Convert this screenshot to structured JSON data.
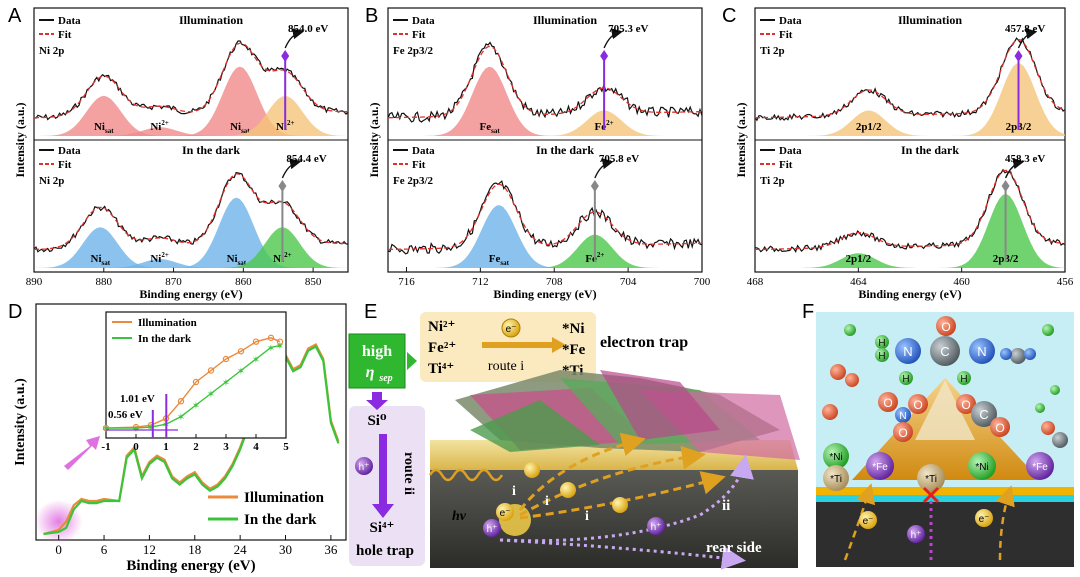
{
  "colors": {
    "fit_red": "#e0312c",
    "peak_red": "#f08a8a",
    "peak_orange": "#f5c47a",
    "peak_blue": "#6fb4ea",
    "peak_green": "#4cc84c",
    "illum_orange": "#e98a3e",
    "dark_green": "#3ac43a",
    "purple": "#8a2be2",
    "e_panel_bg": "#fdf0c8",
    "f_panel_bg": "#c8eef5"
  },
  "chart_data": [
    {
      "panel": "A",
      "type": "line",
      "title_top": "Illumination",
      "title_bottom": "In the dark",
      "xlabel": "Binding energy (eV)",
      "ylabel": "Intensity (a.u.)",
      "xlim": [
        890,
        845
      ],
      "xticks": [
        "890",
        "880",
        "870",
        "860",
        "850"
      ],
      "legend": [
        "Data",
        "Fit"
      ],
      "element_label": "Ni 2p",
      "top_series": {
        "peaks": [
          {
            "name": "Ni",
            "sub": "sat",
            "center": 880.0,
            "height": 0.55,
            "color": "peak_red"
          },
          {
            "name": "Ni",
            "sup": "2+",
            "center": 872.0,
            "height": 0.12,
            "color": "peak_red"
          },
          {
            "name": "Ni",
            "sub": "sat",
            "center": 860.5,
            "height": 0.95,
            "color": "peak_red"
          },
          {
            "name": "Ni",
            "sup": "2+",
            "center": 854.0,
            "height": 0.55,
            "color": "peak_orange"
          }
        ],
        "annotation": "854.0 eV"
      },
      "bottom_series": {
        "peaks": [
          {
            "name": "Ni",
            "sub": "sat",
            "center": 880.5,
            "height": 0.55,
            "color": "peak_blue"
          },
          {
            "name": "Ni",
            "sup": "2+",
            "center": 872.0,
            "height": 0.12,
            "color": "peak_blue"
          },
          {
            "name": "Ni",
            "sub": "sat",
            "center": 861.0,
            "height": 0.95,
            "color": "peak_blue"
          },
          {
            "name": "Ni",
            "sup": "2+",
            "center": 854.4,
            "height": 0.55,
            "color": "peak_green"
          }
        ],
        "annotation": "854.4 eV"
      }
    },
    {
      "panel": "B",
      "type": "line",
      "title_top": "Illumination",
      "title_bottom": "In the dark",
      "xlabel": "Binding energy (eV)",
      "ylabel": "Intensity (a.u.)",
      "xlim": [
        717,
        700
      ],
      "xticks": [
        "716",
        "712",
        "708",
        "704",
        "700"
      ],
      "legend": [
        "Data",
        "Fit"
      ],
      "element_label": "Fe 2p3/2",
      "top_series": {
        "peaks": [
          {
            "name": "Fe",
            "sub": "sat",
            "center": 711.5,
            "height": 0.95,
            "color": "peak_red"
          },
          {
            "name": "Fe",
            "sup": "2+",
            "center": 705.3,
            "height": 0.35,
            "color": "peak_orange"
          }
        ],
        "annotation": "705.3 eV"
      },
      "bottom_series": {
        "peaks": [
          {
            "name": "Fe",
            "sub": "sat",
            "center": 711.0,
            "height": 0.85,
            "color": "peak_blue"
          },
          {
            "name": "Fe",
            "sup": "2+",
            "center": 705.8,
            "height": 0.45,
            "color": "peak_green"
          }
        ],
        "annotation": "705.8 eV"
      }
    },
    {
      "panel": "C",
      "type": "line",
      "title_top": "Illumination",
      "title_bottom": "In the dark",
      "xlabel": "Binding energy (eV)",
      "ylabel": "Intensity (a.u.)",
      "xlim": [
        468,
        456
      ],
      "xticks": [
        "468",
        "464",
        "460",
        "456"
      ],
      "legend": [
        "Data",
        "Fit"
      ],
      "element_label": "Ti 2p",
      "top_series": {
        "peaks": [
          {
            "name": "2p1/2",
            "center": 463.6,
            "height": 0.35,
            "color": "peak_orange"
          },
          {
            "name": "2p3/2",
            "center": 457.8,
            "height": 1.0,
            "color": "peak_orange"
          }
        ],
        "annotation": "457.8 eV"
      },
      "bottom_series": {
        "peaks": [
          {
            "name": "2p1/2",
            "center": 464.0,
            "height": 0.2,
            "color": "peak_green"
          },
          {
            "name": "2p3/2",
            "center": 458.3,
            "height": 1.0,
            "color": "peak_green"
          }
        ],
        "annotation": "458.3 eV"
      }
    },
    {
      "panel": "D",
      "type": "line",
      "xlabel": "Binding energy (eV)",
      "ylabel": "Intensity (a.u.)",
      "xlim": [
        -3,
        38
      ],
      "xticks": [
        "0",
        "6",
        "12",
        "18",
        "24",
        "30",
        "36"
      ],
      "legend": [
        "Illumination",
        "In the dark"
      ],
      "series": [
        {
          "name": "Illumination",
          "color": "illum_orange",
          "x": [
            -2,
            0,
            1,
            2,
            3,
            4,
            5,
            6,
            8,
            9,
            10,
            11,
            12,
            13,
            14,
            15,
            16,
            17,
            18,
            19,
            20,
            21,
            22,
            23,
            24,
            25,
            26,
            27,
            28,
            29,
            30,
            31,
            32,
            33,
            34,
            35,
            36,
            37
          ],
          "y": [
            0.0,
            0.02,
            0.06,
            0.14,
            0.17,
            0.16,
            0.16,
            0.17,
            0.16,
            0.38,
            0.42,
            0.28,
            0.35,
            0.38,
            0.36,
            0.28,
            0.25,
            0.28,
            0.3,
            0.25,
            0.22,
            0.24,
            0.28,
            0.34,
            0.42,
            0.52,
            0.6,
            0.72,
            0.85,
            0.9,
            0.87,
            0.8,
            0.82,
            0.9,
            0.92,
            0.85,
            0.55,
            0.45
          ]
        },
        {
          "name": "In the dark",
          "color": "dark_green",
          "x": [
            -2,
            0,
            1,
            2,
            3,
            4,
            5,
            6,
            8,
            9,
            10,
            11,
            12,
            13,
            14,
            15,
            16,
            17,
            18,
            19,
            20,
            21,
            22,
            23,
            24,
            25,
            26,
            27,
            28,
            29,
            30,
            31,
            32,
            33,
            34,
            35,
            36,
            37
          ],
          "y": [
            0.0,
            0.01,
            0.03,
            0.12,
            0.16,
            0.15,
            0.15,
            0.16,
            0.16,
            0.37,
            0.41,
            0.27,
            0.34,
            0.37,
            0.35,
            0.27,
            0.24,
            0.27,
            0.29,
            0.24,
            0.21,
            0.23,
            0.27,
            0.33,
            0.41,
            0.51,
            0.59,
            0.7,
            0.83,
            0.88,
            0.86,
            0.79,
            0.81,
            0.89,
            0.91,
            0.84,
            0.54,
            0.44
          ]
        }
      ],
      "inset": {
        "xlim": [
          -1,
          5
        ],
        "xticks": [
          "-1",
          "0",
          "1",
          "2",
          "3",
          "4",
          "5"
        ],
        "legend": [
          "Illumination",
          "In the dark"
        ],
        "annotations": [
          "1.01 eV",
          "0.56 eV"
        ],
        "series": [
          {
            "name": "Illumination",
            "x": [
              -1,
              0,
              0.5,
              1,
              1.5,
              2,
              2.5,
              3,
              3.5,
              4,
              4.5,
              4.8
            ],
            "y": [
              0.02,
              0.03,
              0.05,
              0.12,
              0.3,
              0.5,
              0.62,
              0.74,
              0.82,
              0.92,
              0.96,
              0.92
            ]
          },
          {
            "name": "In the dark",
            "x": [
              -1,
              0,
              0.5,
              1,
              1.5,
              2,
              2.5,
              3,
              3.5,
              4,
              4.5,
              4.8
            ],
            "y": [
              0.02,
              0.02,
              0.03,
              0.06,
              0.14,
              0.26,
              0.38,
              0.5,
              0.62,
              0.74,
              0.86,
              0.88
            ]
          }
        ]
      }
    }
  ],
  "panel_letters": [
    "A",
    "B",
    "C",
    "D",
    "E",
    "F"
  ],
  "schematic_e": {
    "high": "high",
    "eta": "η",
    "eta_sub": "sep",
    "ions": [
      "Ni²⁺",
      "Fe²⁺",
      "Ti⁴⁺"
    ],
    "e_label": "e⁻",
    "route_i": "route i",
    "traps_star": [
      "*Ni",
      "*Fe",
      "*Ti"
    ],
    "electron_trap": "electron trap",
    "si0": "Si⁰",
    "h_label": "h⁺",
    "route_ii": "route ii",
    "si4": "Si⁴⁺",
    "hole_trap": "hole trap",
    "hv": "hν",
    "path_labels": [
      "i",
      "i",
      "i",
      "ii"
    ],
    "rear_side": "rear side"
  },
  "schematic_f": {
    "urea_atoms": [
      "O",
      "H",
      "H",
      "N",
      "C",
      "N",
      "H",
      "H"
    ],
    "nitrate_atoms": [
      "O",
      "N",
      "O",
      "O"
    ],
    "co2_atoms": [
      "O",
      "C",
      "O"
    ],
    "sites": [
      "*Ni",
      "*Fe",
      "*Ti",
      "*Ti",
      "*Ni",
      "*Fe"
    ],
    "e_label": "e⁻",
    "h_label": "h⁺"
  }
}
